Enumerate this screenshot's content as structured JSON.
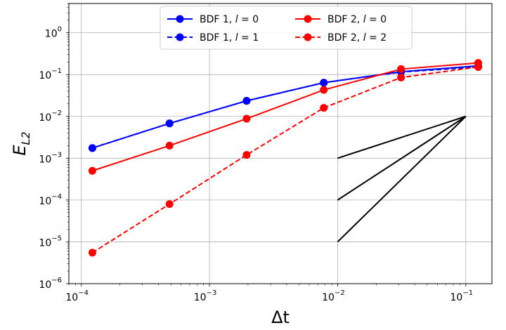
{
  "chart_data": {
    "type": "line",
    "xscale": "log",
    "yscale": "log",
    "xlim": [
      8e-05,
      0.16
    ],
    "ylim": [
      1e-06,
      5
    ],
    "xlabel": "Δt",
    "ylabel_base": "E",
    "ylabel_sub": "L2",
    "grid": true,
    "legend_placement": "top-center",
    "x_ticks": [
      {
        "value": 0.0001,
        "base": "10",
        "exp": "−4"
      },
      {
        "value": 0.001,
        "base": "10",
        "exp": "−3"
      },
      {
        "value": 0.01,
        "base": "10",
        "exp": "−2"
      },
      {
        "value": 0.1,
        "base": "10",
        "exp": "−1"
      }
    ],
    "y_ticks": [
      {
        "value": 1e-06,
        "base": "10",
        "exp": "−6"
      },
      {
        "value": 1e-05,
        "base": "10",
        "exp": "−5"
      },
      {
        "value": 0.0001,
        "base": "10",
        "exp": "−4"
      },
      {
        "value": 0.001,
        "base": "10",
        "exp": "−3"
      },
      {
        "value": 0.01,
        "base": "10",
        "exp": "−2"
      },
      {
        "value": 0.1,
        "base": "10",
        "exp": "−1"
      },
      {
        "value": 1,
        "base": "10",
        "exp": "0"
      }
    ],
    "x": [
      0.000122,
      0.000488,
      0.00195,
      0.0078,
      0.03125,
      0.125
    ],
    "series": [
      {
        "name": "BDF 1, l = 0",
        "legend_prefix": "BDF 1, ",
        "legend_var": "l",
        "legend_eq": " = 0",
        "color": "#0000ff",
        "dash": "solid",
        "values": [
          0.00175,
          0.0068,
          0.0235,
          0.064,
          0.117,
          0.162
        ]
      },
      {
        "name": "BDF 1, l = 1",
        "legend_prefix": "BDF 1, ",
        "legend_var": "l",
        "legend_eq": " = 1",
        "color": "#0000ff",
        "dash": "dashed",
        "values": [
          0.00175,
          0.0068,
          0.0235,
          0.064,
          0.115,
          0.152
        ]
      },
      {
        "name": "BDF 2, l = 0",
        "legend_prefix": "BDF 2, ",
        "legend_var": "l",
        "legend_eq": " = 0",
        "color": "#ff0000",
        "dash": "solid",
        "values": [
          0.0005,
          0.002,
          0.0088,
          0.043,
          0.135,
          0.19
        ]
      },
      {
        "name": "BDF 2, l = 2",
        "legend_prefix": "BDF 2, ",
        "legend_var": "l",
        "legend_eq": " = 2",
        "color": "#ff0000",
        "dash": "dashed",
        "values": [
          5.5e-06,
          8e-05,
          0.0012,
          0.016,
          0.085,
          0.152
        ]
      }
    ],
    "reference_lines": [
      {
        "order": 1,
        "color": "#000000",
        "x": [
          0.01,
          0.1
        ],
        "y": [
          0.001,
          0.01
        ]
      },
      {
        "order": 2,
        "color": "#000000",
        "x": [
          0.01,
          0.1
        ],
        "y": [
          0.0001,
          0.01
        ]
      },
      {
        "order": 3,
        "color": "#000000",
        "x": [
          0.01,
          0.1
        ],
        "y": [
          1e-05,
          0.01
        ]
      }
    ]
  }
}
